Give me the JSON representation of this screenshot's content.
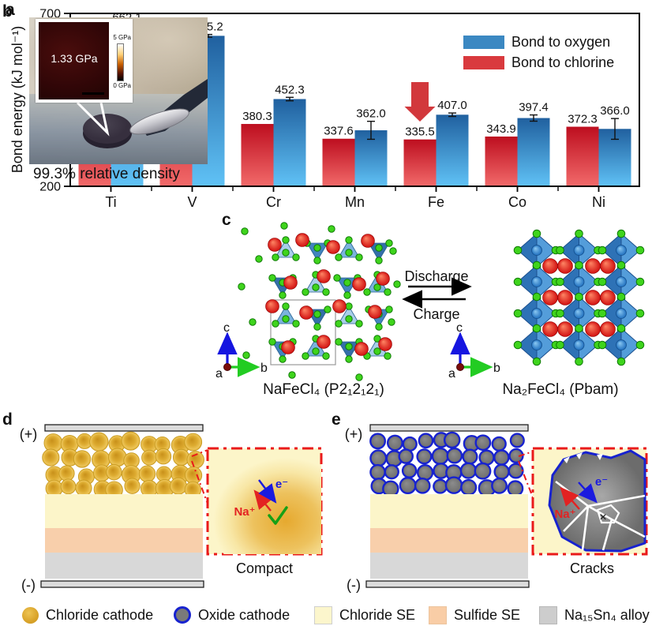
{
  "panel_letters": {
    "a": "a",
    "b": "b",
    "c": "c",
    "d": "d",
    "e": "e"
  },
  "chart_data": {
    "type": "bar",
    "title": "",
    "ylabel": "Bond energy (kJ mol⁻¹)",
    "xlabel": "",
    "ylim": [
      200,
      700
    ],
    "ytick_step": 100,
    "grid": false,
    "legend_position": "top-right",
    "categories": [
      "Ti",
      "V",
      "Cr",
      "Mn",
      "Fe",
      "Co",
      "Ni"
    ],
    "series": [
      {
        "name": "Bond to oxygen",
        "legend_color": "#3b88c2",
        "gradient_top": "#20609f",
        "gradient_bottom": "#60c2f6",
        "values": [
          662.1,
          635.2,
          452.3,
          362.0,
          407.0,
          397.4,
          366.0
        ],
        "errors": [
          4,
          4,
          5,
          26,
          5,
          9,
          30
        ]
      },
      {
        "name": "Bond to chlorine",
        "legend_color": "#d93a3e",
        "gradient_top": "#bd0e1f",
        "gradient_bottom": "#f26a6a",
        "values": [
          405.4,
          477.0,
          380.3,
          337.6,
          335.5,
          343.9,
          372.3
        ],
        "errors": [
          11,
          64,
          0,
          0,
          0,
          0,
          0
        ]
      }
    ],
    "annotation": {
      "shape": "down-arrow",
      "category": "Fe",
      "color": "#d2383c"
    }
  },
  "panel_b": {
    "inset_value": "1.33 GPa",
    "scale_max": "5 GPa",
    "scale_min": "0 GPa",
    "caption": "99.3% relative density"
  },
  "panel_c": {
    "left_label": "NaFeCl₄ (P2₁2₁2₁)",
    "right_label": "Na₂FeCl₄ (Pbam)",
    "forward_label": "Discharge",
    "backward_label": "Charge",
    "axis_a": "a",
    "axis_b": "b",
    "axis_c": "c"
  },
  "panel_d": {
    "positive": "(+)",
    "negative": "(-)",
    "ion_label": "Na⁺",
    "electron_label": "e⁻",
    "inset_caption": "Compact"
  },
  "panel_e": {
    "positive": "(+)",
    "negative": "(-)",
    "ion_label": "Na⁺",
    "electron_label": "e⁻",
    "cross_mark": "×",
    "inset_caption": "Cracks"
  },
  "legend": {
    "items": [
      {
        "swatch": "chloride-particle",
        "color": "#dfa62c",
        "label": "Chloride cathode"
      },
      {
        "swatch": "oxide-particle",
        "color": "#7a7a7a",
        "border": "#1722cf",
        "label": "Oxide cathode"
      },
      {
        "swatch": "chloride-se",
        "color": "#fcf6cc",
        "label": "Chloride SE"
      },
      {
        "swatch": "sulfide-se",
        "color": "#f9cda6",
        "label": "Sulfide SE"
      },
      {
        "swatch": "alloy",
        "color": "#cdcdcd",
        "label": "Na₁₅Sn₄ alloy"
      }
    ]
  }
}
